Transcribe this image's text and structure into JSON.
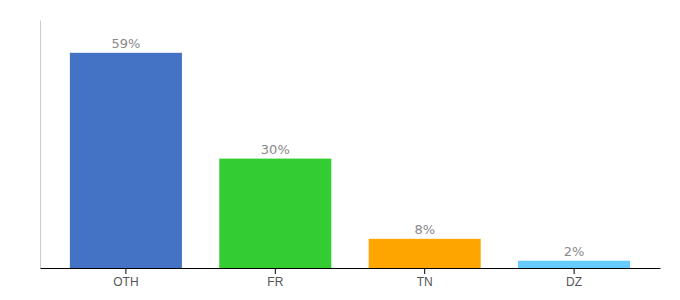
{
  "chart_data": {
    "type": "bar",
    "categories": [
      "OTH",
      "FR",
      "TN",
      "DZ"
    ],
    "values": [
      59,
      30,
      8,
      2
    ],
    "value_labels": [
      "59%",
      "30%",
      "8%",
      "2%"
    ],
    "colors": [
      "#4472C4",
      "#33CC33",
      "#FFA500",
      "#66CCFF"
    ],
    "ylim": [
      0,
      68
    ],
    "data_labels": true,
    "tick_labels": "x",
    "grid": false
  }
}
